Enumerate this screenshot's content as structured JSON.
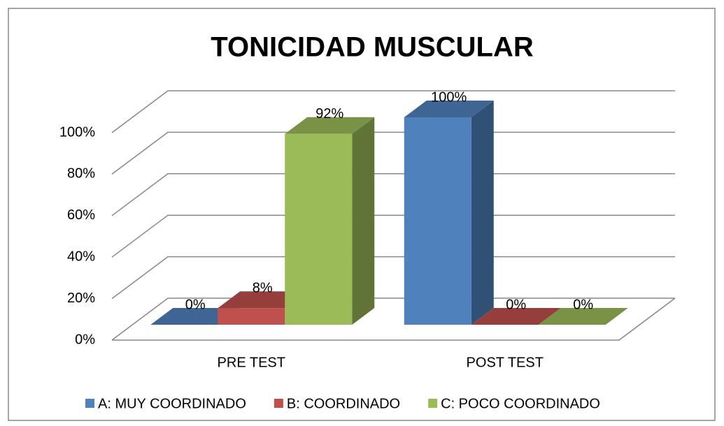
{
  "chart_data": {
    "type": "bar3d",
    "title": "TONICIDAD MUSCULAR",
    "categories": [
      "PRE TEST",
      "POST TEST"
    ],
    "series": [
      {
        "name": "A: MUY COORDINADO",
        "color": "#4f81bd",
        "values": [
          0,
          100
        ],
        "value_labels": [
          "0%",
          "100%"
        ]
      },
      {
        "name": "B: COORDINADO",
        "color": "#c0504d",
        "values": [
          8,
          0
        ],
        "value_labels": [
          "8%",
          "0%"
        ]
      },
      {
        "name": "C: POCO COORDINADO",
        "color": "#9bbb59",
        "values": [
          92,
          0
        ],
        "value_labels": [
          "92%",
          "0%"
        ]
      }
    ],
    "ylim": [
      0,
      100
    ],
    "yticks": [
      {
        "value": 0,
        "label": "0%"
      },
      {
        "value": 20,
        "label": "20%"
      },
      {
        "value": 40,
        "label": "40%"
      },
      {
        "value": 60,
        "label": "60%"
      },
      {
        "value": 80,
        "label": "80%"
      },
      {
        "value": 100,
        "label": "100%"
      }
    ],
    "grid": true,
    "legend": "bottom"
  }
}
